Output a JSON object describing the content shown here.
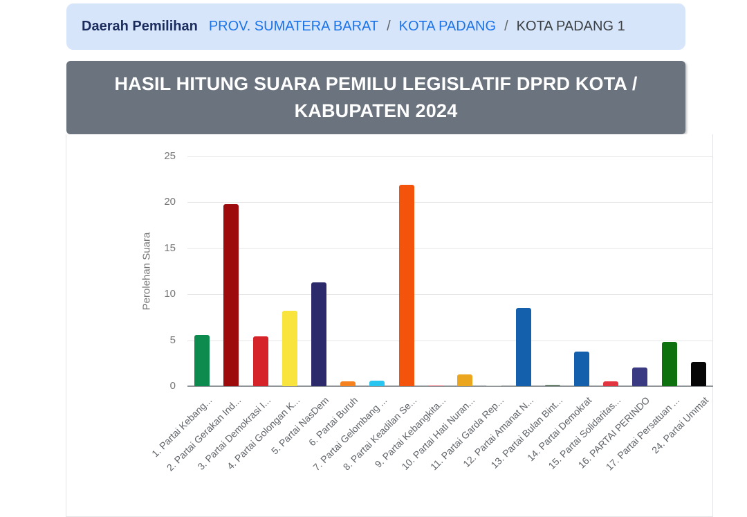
{
  "breadcrumb": {
    "label": "Daerah Pemilihan",
    "separator": "/",
    "items": [
      {
        "text": "PROV. SUMATERA BARAT",
        "link": true
      },
      {
        "text": "KOTA PADANG",
        "link": true
      },
      {
        "text": "KOTA PADANG 1",
        "link": false
      }
    ],
    "colors": {
      "background": "#d7e5fb",
      "label": "#1b2d5e",
      "link": "#1a73e8",
      "current": "#3c4043"
    }
  },
  "header": {
    "title": "HASIL HITUNG SUARA PEMILU LEGISLATIF DPRD KOTA / KABUPATEN 2024",
    "colors": {
      "background": "#6a737e",
      "text": "#ffffff"
    }
  },
  "chart_data": {
    "type": "bar",
    "title": "",
    "xlabel": "",
    "ylabel": "Perolehan Suara",
    "ylim": [
      0,
      25
    ],
    "yticks": [
      0,
      5,
      10,
      15,
      20,
      25
    ],
    "grid": true,
    "legend": "none",
    "categories": [
      "1. Partai Kebang...",
      "2. Partai Gerakan Ind...",
      "3. Partai Demokrasi I...",
      "4. Partai Golongan K...",
      "5. Partai NasDem",
      "6. Partai Buruh",
      "7. Partai Gelombang ...",
      "8. Partai Keadilan Se...",
      "9. Partai Kebangkita...",
      "10. Partai Hati Nuran...",
      "11. Partai Garda Rep...",
      "12. Partai Amanat N...",
      "13. Partai Bulan Bint...",
      "14. Partai Demokrat",
      "15. Partai Solidaritas...",
      "16. PARTAI PERINDO",
      "17. Partai Persatuan ...",
      "24. Partai Ummat"
    ],
    "values": [
      5.6,
      19.8,
      5.4,
      8.2,
      11.3,
      0.5,
      0.6,
      21.9,
      0.1,
      1.3,
      0.06,
      8.5,
      0.15,
      3.8,
      0.5,
      2.0,
      4.8,
      2.6
    ],
    "colors": [
      "#0d8a4e",
      "#9e0b0c",
      "#d62329",
      "#f8e43c",
      "#2c2a6b",
      "#f5821f",
      "#29c5f1",
      "#f4530b",
      "#e4606a",
      "#eca51f",
      "#c0c8c0",
      "#1560ac",
      "#697f6e",
      "#1560ac",
      "#e3353f",
      "#3a3a82",
      "#0d720d",
      "#060606"
    ]
  }
}
